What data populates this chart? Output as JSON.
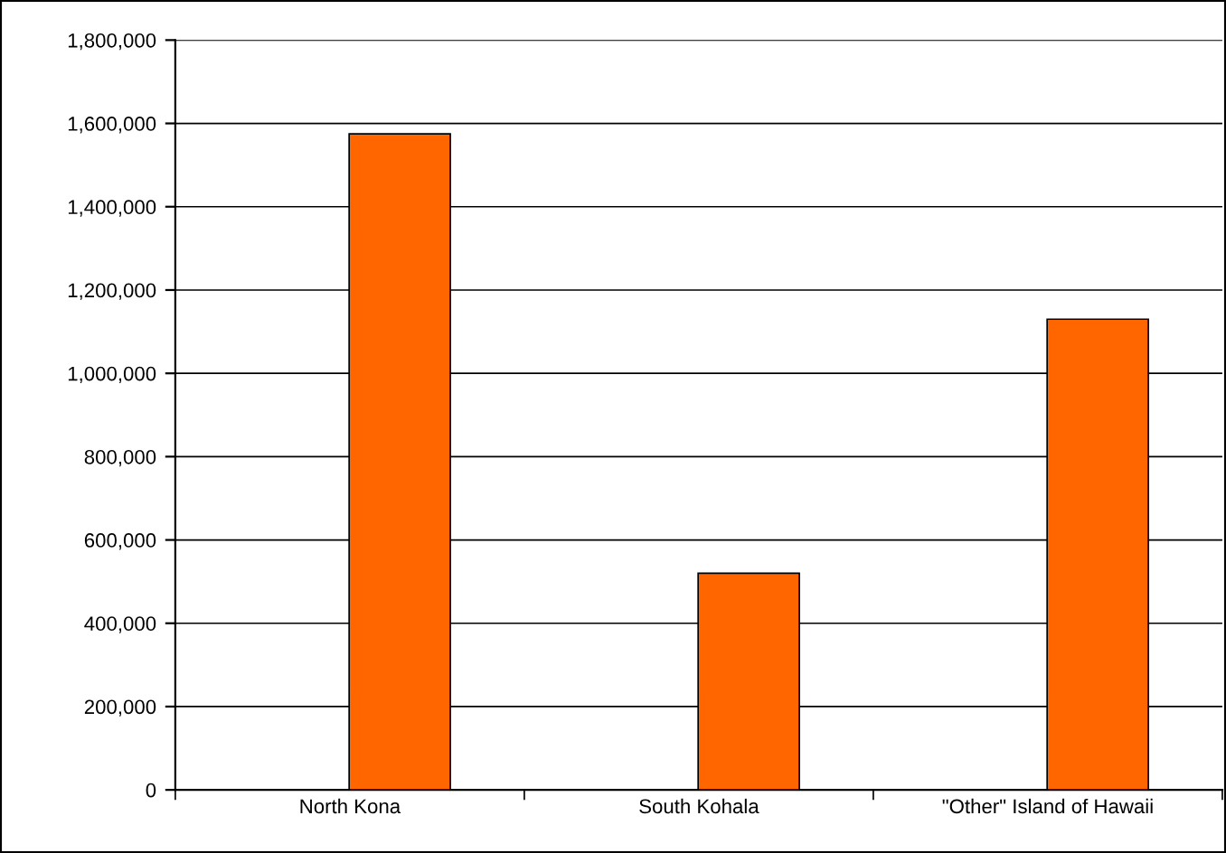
{
  "chart_data": {
    "type": "bar",
    "categories": [
      "North Kona",
      "South Kohala",
      "\"Other\" Island of Hawaii"
    ],
    "values": [
      1575000,
      520000,
      1130000
    ],
    "color": "#ff6600",
    "ylim": [
      0,
      1800000
    ],
    "yticks": [
      {
        "value": 0,
        "label": "0"
      },
      {
        "value": 200000,
        "label": "200,000"
      },
      {
        "value": 400000,
        "label": "400,000"
      },
      {
        "value": 600000,
        "label": "600,000"
      },
      {
        "value": 800000,
        "label": "800,000"
      },
      {
        "value": 1000000,
        "label": "1,000,000"
      },
      {
        "value": 1200000,
        "label": "1,200,000"
      },
      {
        "value": 1400000,
        "label": "1,400,000"
      },
      {
        "value": 1600000,
        "label": "1,600,000"
      },
      {
        "value": 1800000,
        "label": "1,800,000"
      }
    ],
    "grid": "y",
    "legend": false
  }
}
